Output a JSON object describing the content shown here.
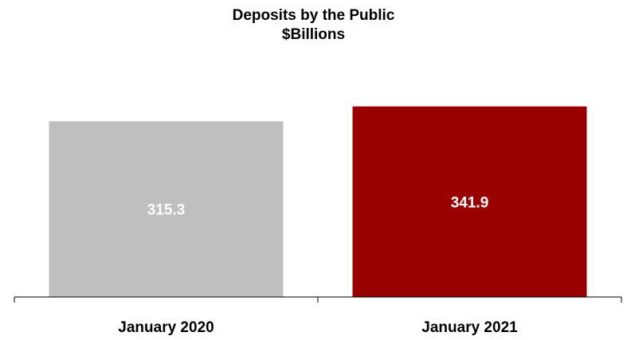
{
  "chart_data": {
    "type": "bar",
    "title": "Deposits by the Public",
    "subtitle": "$Billions",
    "categories": [
      "January 2020",
      "January 2021"
    ],
    "values": [
      315.3,
      341.9
    ],
    "value_labels": [
      "315.3",
      "341.9"
    ],
    "bar_colors": [
      "#bfbfbf",
      "#990000"
    ],
    "data_label_color": "#ffffff",
    "ylim": [
      0,
      390
    ],
    "grid": false,
    "legend": "none"
  }
}
